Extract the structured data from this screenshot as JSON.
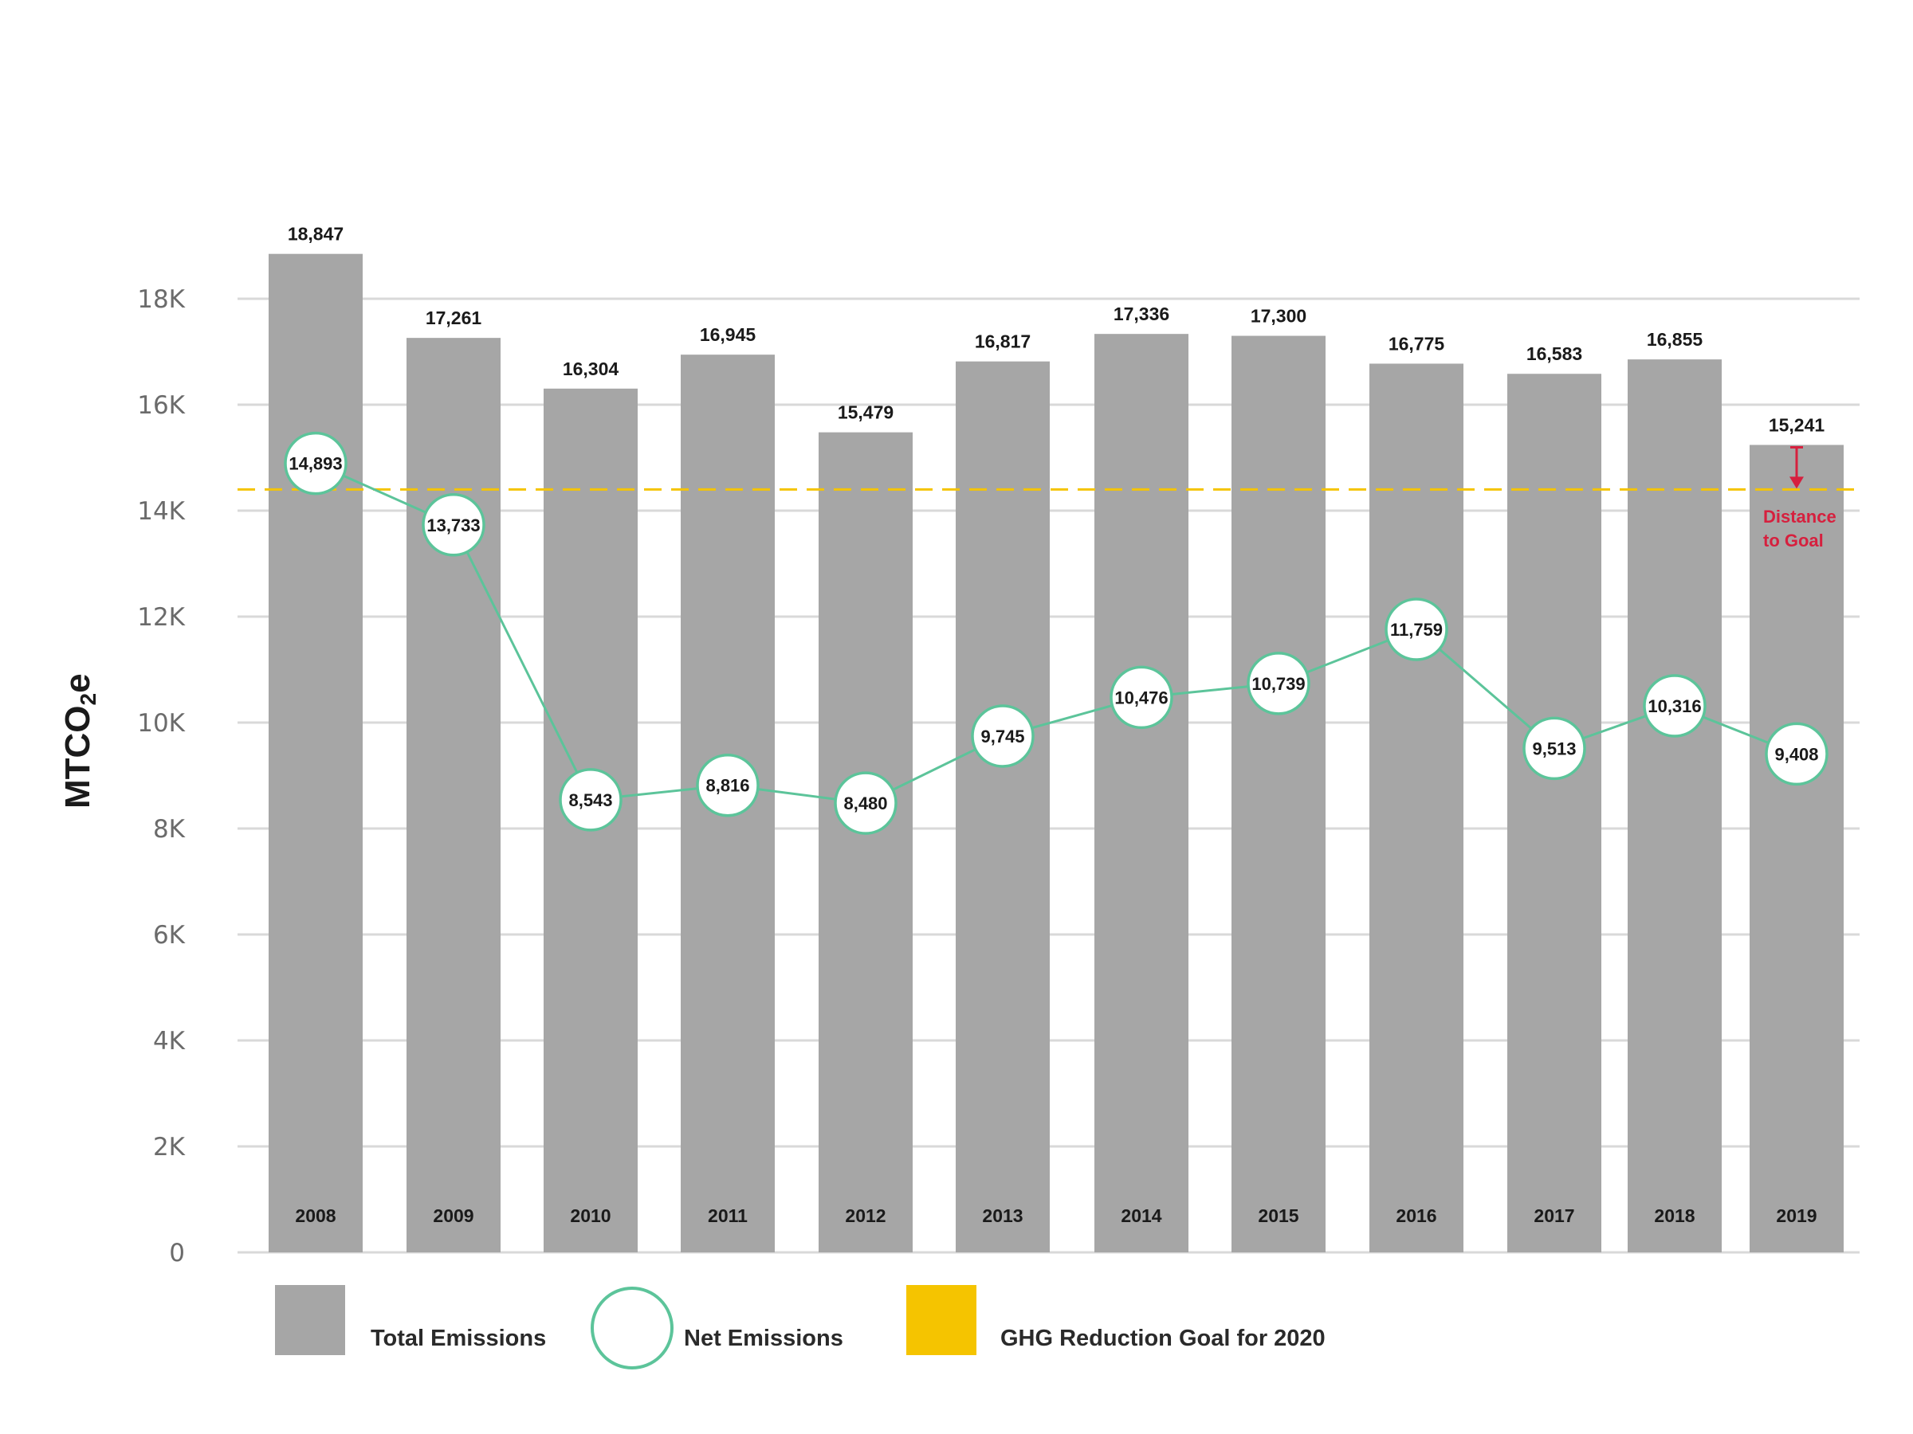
{
  "chart_data": {
    "type": "bar",
    "categories": [
      "2008",
      "2009",
      "2010",
      "2011",
      "2012",
      "2013",
      "2014",
      "2015",
      "2016",
      "2017",
      "2018",
      "2019"
    ],
    "series": [
      {
        "name": "Total Emissions",
        "kind": "bar",
        "values": [
          18847,
          17261,
          16304,
          16945,
          15479,
          16817,
          17336,
          17300,
          16775,
          16583,
          16855,
          15241
        ],
        "labels": [
          "18,847",
          "17,261",
          "16,304",
          "16,945",
          "15,479",
          "16,817",
          "17,336",
          "17,300",
          "16,775",
          "16,583",
          "16,855",
          "15,241"
        ],
        "color": "#a6a6a6"
      },
      {
        "name": "Net Emissions",
        "kind": "line",
        "values": [
          14893,
          13733,
          8543,
          8816,
          8480,
          9745,
          10476,
          10739,
          11759,
          9513,
          10316,
          9408
        ],
        "labels": [
          "14,893",
          "13,733",
          "8,543",
          "8,816",
          "8,480",
          "9,745",
          "10,476",
          "10,739",
          "11,759",
          "9,513",
          "10,316",
          "9,408"
        ],
        "color": "#5cc49a"
      }
    ],
    "goal": {
      "name": "GHG Reduction Goal for 2020",
      "value": 14400,
      "color": "#f5c400"
    },
    "annotation": {
      "line1": "Distance",
      "line2": "to Goal",
      "color": "#d6203e"
    },
    "ylabel": {
      "main": "MTCO",
      "sub": "2",
      "suffix": "e"
    },
    "ylim": [
      0,
      18000
    ],
    "yticks": [
      {
        "value": 0,
        "label": "0"
      },
      {
        "value": 2000,
        "label": "2K"
      },
      {
        "value": 4000,
        "label": "4K"
      },
      {
        "value": 6000,
        "label": "6K"
      },
      {
        "value": 8000,
        "label": "8K"
      },
      {
        "value": 10000,
        "label": "10K"
      },
      {
        "value": 12000,
        "label": "12K"
      },
      {
        "value": 14000,
        "label": "14K"
      },
      {
        "value": 16000,
        "label": "16K"
      },
      {
        "value": 18000,
        "label": "18K"
      }
    ],
    "grid": true,
    "legend_position": "bottom",
    "legend": [
      {
        "label": "Total Emissions",
        "color": "#a6a6a6"
      },
      {
        "label": "Net Emissions",
        "color": "#5cc49a"
      },
      {
        "label": "GHG Reduction Goal for 2020",
        "color": "#f5c400"
      }
    ]
  }
}
